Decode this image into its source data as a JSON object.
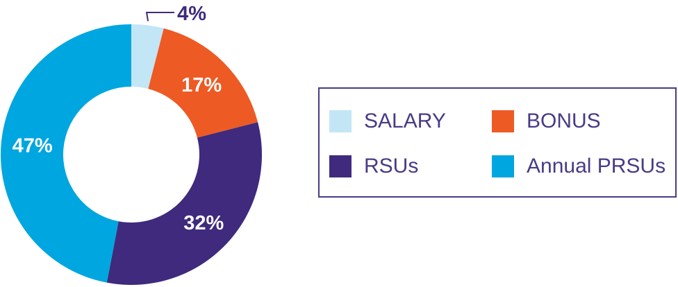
{
  "chart_data": {
    "type": "pie",
    "categories": [
      "SALARY",
      "BONUS",
      "RSUs",
      "Annual PRSUs"
    ],
    "values": [
      4,
      17,
      32,
      47
    ],
    "value_labels": [
      "4%",
      "17%",
      "32%",
      "47%"
    ],
    "colors": [
      "#c3e6f6",
      "#ee5a24",
      "#3f2a7e",
      "#00a6df"
    ],
    "donut": true,
    "legend_position": "right"
  },
  "legend": {
    "items": [
      {
        "label": "SALARY",
        "color": "#c3e6f6"
      },
      {
        "label": "BONUS",
        "color": "#ee5a24"
      },
      {
        "label": "RSUs",
        "color": "#3f2a7e"
      },
      {
        "label": "Annual PRSUs",
        "color": "#00a6df"
      }
    ]
  }
}
